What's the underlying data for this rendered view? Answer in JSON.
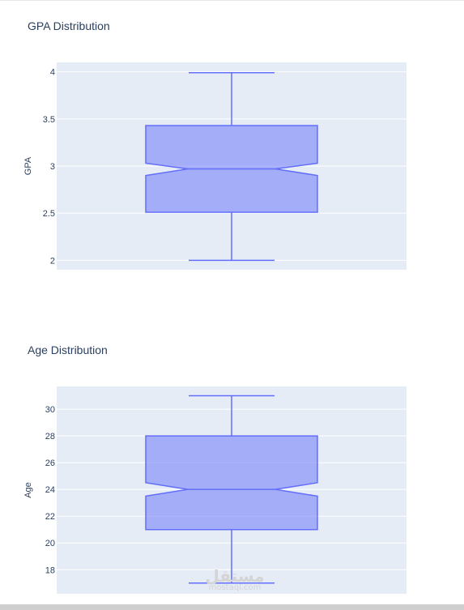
{
  "watermark": {
    "arabic": "مستقل",
    "latin": "mostaql.com"
  },
  "colors": {
    "plot_bg": "#e5ecf6",
    "box_fill": "#636efa",
    "box_line": "#636efa",
    "grid": "#ffffff",
    "text": "#2a3f5f"
  },
  "chart_data": [
    {
      "type": "box",
      "title": "GPA Distribution",
      "xlabel": "",
      "ylabel": "GPA",
      "notched": true,
      "yticks": [
        2,
        2.5,
        3,
        3.5,
        4
      ],
      "ytick_labels": [
        "2",
        "2.5",
        "3",
        "3.5",
        "4"
      ],
      "ylim": [
        1.9,
        4.1
      ],
      "series": [
        {
          "min": 2.0,
          "q1": 2.51,
          "median": 2.97,
          "q3": 3.43,
          "max": 3.99,
          "notch_low": 2.9,
          "notch_high": 3.03
        }
      ],
      "grid": true
    },
    {
      "type": "box",
      "title": "Age Distribution",
      "xlabel": "",
      "ylabel": "Age",
      "notched": true,
      "yticks": [
        18,
        20,
        22,
        24,
        26,
        28,
        30
      ],
      "ytick_labels": [
        "18",
        "20",
        "22",
        "24",
        "26",
        "28",
        "30"
      ],
      "ylim": [
        16.2,
        31.7
      ],
      "series": [
        {
          "min": 17,
          "q1": 21,
          "median": 24,
          "q3": 28,
          "max": 31,
          "notch_low": 23.5,
          "notch_high": 24.5
        }
      ],
      "grid": true
    }
  ]
}
